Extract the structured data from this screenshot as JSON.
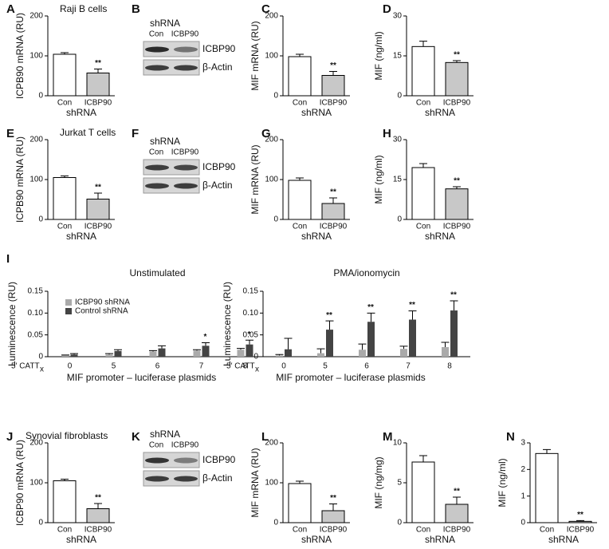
{
  "chart_data": [
    {
      "type": "bar",
      "panel": "A",
      "title": "Raji B cells",
      "ylabel": "ICPB90 mRNA (RU)",
      "xlabel": "shRNA",
      "categories": [
        "Con",
        "ICBP90"
      ],
      "values": [
        104,
        57
      ],
      "errors": [
        4,
        10
      ],
      "significance": [
        null,
        "**"
      ],
      "colors": [
        "#ffffff",
        "#c8c8c8"
      ],
      "ylim": [
        0,
        200
      ],
      "yticks": [
        0,
        100,
        200
      ]
    },
    {
      "type": "bar",
      "panel": "C",
      "ylabel": "MIF mRNA (RU)",
      "xlabel": "shRNA",
      "categories": [
        "Con",
        "ICBP90"
      ],
      "values": [
        98,
        51
      ],
      "errors": [
        6,
        10
      ],
      "significance": [
        null,
        "**"
      ],
      "colors": [
        "#ffffff",
        "#c8c8c8"
      ],
      "ylim": [
        0,
        200
      ],
      "yticks": [
        0,
        100,
        200
      ]
    },
    {
      "type": "bar",
      "panel": "D",
      "ylabel": "MIF (ng/ml)",
      "xlabel": "shRNA",
      "categories": [
        "Con",
        "ICBP90"
      ],
      "values": [
        18.5,
        12.5
      ],
      "errors": [
        2,
        0.7
      ],
      "significance": [
        null,
        "**"
      ],
      "colors": [
        "#ffffff",
        "#c8c8c8"
      ],
      "ylim": [
        0,
        30
      ],
      "yticks": [
        0,
        15,
        30
      ]
    },
    {
      "type": "bar",
      "panel": "E",
      "title": "Jurkat T  cells",
      "ylabel": "ICPB90 mRNA (RU)",
      "xlabel": "shRNA",
      "categories": [
        "Con",
        "ICBP90"
      ],
      "values": [
        105,
        51
      ],
      "errors": [
        4,
        15
      ],
      "significance": [
        null,
        "**"
      ],
      "colors": [
        "#ffffff",
        "#c8c8c8"
      ],
      "ylim": [
        0,
        200
      ],
      "yticks": [
        0,
        100,
        200
      ]
    },
    {
      "type": "bar",
      "panel": "G",
      "ylabel": "MIF mRNA (RU)",
      "xlabel": "shRNA",
      "categories": [
        "Con",
        "ICBP90"
      ],
      "values": [
        98,
        40
      ],
      "errors": [
        6,
        14
      ],
      "significance": [
        null,
        "**"
      ],
      "colors": [
        "#ffffff",
        "#c8c8c8"
      ],
      "ylim": [
        0,
        200
      ],
      "yticks": [
        0,
        100,
        200
      ]
    },
    {
      "type": "bar",
      "panel": "H",
      "ylabel": "MIF (ng/ml)",
      "xlabel": "shRNA",
      "categories": [
        "Con",
        "ICBP90"
      ],
      "values": [
        19.5,
        11.5
      ],
      "errors": [
        1.5,
        0.8
      ],
      "significance": [
        null,
        "**"
      ],
      "colors": [
        "#ffffff",
        "#c8c8c8"
      ],
      "ylim": [
        0,
        30
      ],
      "yticks": [
        0,
        15,
        30
      ]
    },
    {
      "type": "grouped",
      "panel": "I",
      "title": "Unstimulated",
      "ylabel": "Luminescence (RU)",
      "x_prefix": "5′ CATT",
      "x_prefix_sub": "x",
      "xlabel": "MIF promoter – luciferase plasmids",
      "categories": [
        "0",
        "5",
        "6",
        "7",
        "8"
      ],
      "legend": true,
      "series": [
        {
          "name": "ICBP90 shRNA",
          "color": "#aaaaaa",
          "values": [
            0.003,
            0.005,
            0.012,
            0.014,
            0.016
          ],
          "errors": [
            0.001,
            0.002,
            0.002,
            0.002,
            0.003
          ]
        },
        {
          "name": "Control shRNA",
          "color": "#444444",
          "values": [
            0.005,
            0.013,
            0.019,
            0.025,
            0.028
          ],
          "errors": [
            0.002,
            0.003,
            0.006,
            0.007,
            0.01
          ]
        }
      ],
      "significance": [
        null,
        null,
        null,
        "*",
        "*"
      ],
      "ylim": [
        0,
        0.15
      ],
      "yticks": [
        0,
        0.05,
        {
          "value": 0.1,
          "label": "0.10"
        },
        0.15
      ]
    },
    {
      "type": "grouped",
      "title": "PMA/ionomycin",
      "ylabel": "Luminescence (RU)",
      "x_prefix": "5′ CATT",
      "x_prefix_sub": "x",
      "xlabel": "MIF promoter – luciferase plasmids",
      "categories": [
        "0",
        "5",
        "6",
        "7",
        "8"
      ],
      "legend": false,
      "series": [
        {
          "name": "ICBP90 shRNA",
          "color": "#aaaaaa",
          "values": [
            0.003,
            0.008,
            0.016,
            0.018,
            0.022
          ],
          "errors": [
            0.002,
            0.01,
            0.013,
            0.006,
            0.011
          ]
        },
        {
          "name": "Control shRNA",
          "color": "#444444",
          "values": [
            0.017,
            0.062,
            0.08,
            0.085,
            0.106
          ],
          "errors": [
            0.025,
            0.02,
            0.02,
            0.02,
            0.022
          ]
        }
      ],
      "significance": [
        null,
        "**",
        "**",
        "**",
        "**"
      ],
      "ylim": [
        0,
        0.15
      ],
      "yticks": [
        0,
        0.05,
        {
          "value": 0.1,
          "label": "0.10"
        },
        0.15
      ]
    },
    {
      "type": "bar",
      "panel": "J",
      "title": "Synovial fibroblasts",
      "ylabel": "ICBP90 mRNA (RU)",
      "xlabel": "shRNA",
      "categories": [
        "Con",
        "ICBP90"
      ],
      "values": [
        105,
        35
      ],
      "errors": [
        4,
        13
      ],
      "significance": [
        null,
        "**"
      ],
      "colors": [
        "#ffffff",
        "#c8c8c8"
      ],
      "ylim": [
        0,
        200
      ],
      "yticks": [
        0,
        100,
        200
      ]
    },
    {
      "type": "bar",
      "panel": "L",
      "ylabel": "MIF mRNA (RU)",
      "xlabel": "shRNA",
      "categories": [
        "Con",
        "ICBP90"
      ],
      "values": [
        98,
        30
      ],
      "errors": [
        6,
        17
      ],
      "significance": [
        null,
        "**"
      ],
      "colors": [
        "#ffffff",
        "#c8c8c8"
      ],
      "ylim": [
        0,
        200
      ],
      "yticks": [
        0,
        100,
        200
      ]
    },
    {
      "type": "bar",
      "panel": "M",
      "ylabel": "MIF (ng/mg)",
      "xlabel": "shRNA",
      "categories": [
        "Con",
        "ICBP90"
      ],
      "values": [
        7.6,
        2.3
      ],
      "errors": [
        0.8,
        0.9
      ],
      "significance": [
        null,
        "**"
      ],
      "colors": [
        "#ffffff",
        "#c8c8c8"
      ],
      "ylim": [
        0,
        10
      ],
      "yticks": [
        0,
        5,
        10
      ]
    },
    {
      "type": "bar",
      "panel": "N",
      "ylabel": "MIF (ng/ml)",
      "xlabel": "shRNA",
      "categories": [
        "Con",
        "ICBP90"
      ],
      "values": [
        2.6,
        0.05
      ],
      "errors": [
        0.15,
        0.03
      ],
      "significance": [
        null,
        "**"
      ],
      "colors": [
        "#ffffff",
        "#c8c8c8"
      ],
      "ylim": [
        0,
        3
      ],
      "yticks": [
        0,
        1,
        2,
        3
      ]
    }
  ],
  "blots": [
    {
      "panel": "B",
      "header": "shRNA",
      "lanes": [
        "Con",
        "ICBP90"
      ],
      "bands": [
        "ICBP90",
        "β-Actin"
      ]
    },
    {
      "panel": "F",
      "header": "shRNA",
      "lanes": [
        "Con",
        "ICBP90"
      ],
      "bands": [
        "ICBP90",
        "β-Actin"
      ]
    },
    {
      "panel": "K",
      "header": "shRNA",
      "lanes": [
        "Con",
        "ICBP90"
      ],
      "bands": [
        "ICBP90",
        "β-Actin"
      ]
    }
  ]
}
